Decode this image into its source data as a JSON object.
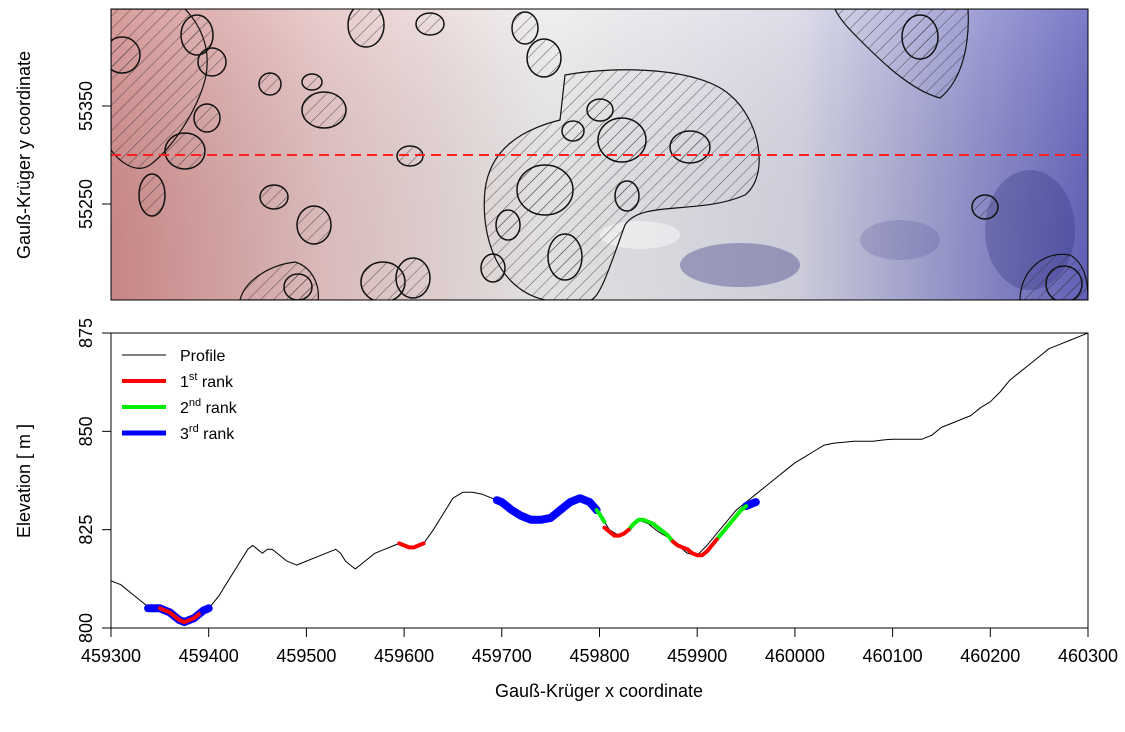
{
  "figure": {
    "map_panel": {
      "ylabel": "Gauß-Krüger y coordinate",
      "y_ticks": [
        "55350",
        "55250"
      ],
      "profile_line_color": "#ff2020",
      "relief_colors": {
        "west": "#d08a8a",
        "center": "#e8e8e8",
        "east": "#5a5ab8"
      },
      "hatched_features": "hatched polygons (sinkhole delineation) on shaded relief"
    },
    "profile_panel": {
      "xlabel": "Gauß-Krüger x coordinate",
      "ylabel": "Elevation [ m ]",
      "legend": [
        {
          "label": "Profile",
          "sup": "",
          "suffix": "",
          "color": "#000000"
        },
        {
          "label": "1",
          "sup": "st",
          "suffix": " rank",
          "color": "#ff0000"
        },
        {
          "label": "2",
          "sup": "nd",
          "suffix": " rank",
          "color": "#00ee00"
        },
        {
          "label": "3",
          "sup": "rd",
          "suffix": " rank",
          "color": "#0000ff"
        }
      ]
    }
  },
  "chart_data": [
    {
      "type": "line",
      "title": "",
      "xlabel": "Gauß-Krüger x coordinate",
      "ylabel": "Elevation [ m ]",
      "xlim": [
        459300,
        460300
      ],
      "ylim": [
        800,
        875
      ],
      "x_ticks": [
        459300,
        459400,
        459500,
        459600,
        459700,
        459800,
        459900,
        460000,
        460100,
        460200,
        460300
      ],
      "y_ticks": [
        800,
        825,
        850,
        875
      ],
      "legend_position": "top-left",
      "grid": false,
      "series": [
        {
          "name": "Profile",
          "color": "#000000",
          "x": [
            459300,
            459310,
            459320,
            459330,
            459340,
            459350,
            459360,
            459370,
            459380,
            459390,
            459400,
            459410,
            459420,
            459430,
            459440,
            459445,
            459450,
            459455,
            459460,
            459465,
            459470,
            459480,
            459490,
            459500,
            459510,
            459520,
            459530,
            459535,
            459540,
            459545,
            459550,
            459555,
            459560,
            459570,
            459580,
            459590,
            459595,
            459600,
            459610,
            459620,
            459630,
            459640,
            459650,
            459660,
            459670,
            459680,
            459690,
            459700,
            459710,
            459720,
            459730,
            459740,
            459750,
            459760,
            459770,
            459780,
            459790,
            459800,
            459810,
            459820,
            459830,
            459840,
            459850,
            459860,
            459870,
            459880,
            459890,
            459900,
            459910,
            459920,
            459930,
            459940,
            459950,
            459960,
            459970,
            459980,
            459990,
            460000,
            460010,
            460020,
            460030,
            460040,
            460050,
            460060,
            460070,
            460080,
            460090,
            460100,
            460110,
            460120,
            460130,
            460140,
            460150,
            460160,
            460170,
            460180,
            460190,
            460200,
            460210,
            460220,
            460230,
            460240,
            460250,
            460260,
            460270,
            460280,
            460290,
            460300
          ],
          "y": [
            812,
            811,
            809,
            807,
            805,
            805,
            804,
            802,
            802,
            804,
            805,
            808,
            812,
            816,
            820,
            821,
            820,
            819,
            820,
            820,
            819,
            817,
            816,
            817,
            818,
            819,
            820,
            819,
            817,
            816,
            815,
            816,
            817,
            819,
            820,
            821,
            821.5,
            821,
            820.5,
            821.5,
            825,
            829,
            833,
            834.5,
            834.5,
            834,
            833,
            832.5,
            830,
            828.5,
            827.5,
            827.5,
            828,
            830,
            832,
            833,
            832,
            829,
            825,
            823.5,
            825,
            827.5,
            826.5,
            824.5,
            823,
            821,
            819,
            818.5,
            821,
            824,
            827,
            830,
            832,
            834,
            836,
            838,
            840,
            842,
            843.5,
            845,
            846.5,
            847,
            847.2,
            847.5,
            847.5,
            847.5,
            847.8,
            848,
            848,
            848,
            848,
            849,
            851,
            852,
            853,
            854,
            856,
            857.5,
            860,
            863,
            865,
            867,
            869,
            871,
            872,
            873,
            874,
            875
          ]
        },
        {
          "name": "1st rank",
          "color": "#ff0000",
          "segments": [
            {
              "x": [
                459350,
                459355,
                459360,
                459365,
                459370,
                459375,
                459380,
                459385,
                459390
              ],
              "y": [
                805,
                804.5,
                804,
                803,
                802,
                801.5,
                802,
                802.5,
                803.5
              ]
            },
            {
              "x": [
                459595,
                459600,
                459605,
                459610,
                459615,
                459620
              ],
              "y": [
                821.5,
                821,
                820.5,
                820.5,
                821,
                821.5
              ]
            },
            {
              "x": [
                459805,
                459810,
                459815,
                459820,
                459825,
                459830
              ],
              "y": [
                825.5,
                824.5,
                823.5,
                823.5,
                824,
                825
              ]
            },
            {
              "x": [
                459875,
                459880,
                459885,
                459890,
                459895,
                459900,
                459905,
                459910,
                459915,
                459920
              ],
              "y": [
                822,
                821,
                820.5,
                820,
                819,
                818.5,
                818.5,
                819.5,
                821,
                822.5
              ]
            }
          ]
        },
        {
          "name": "2nd rank",
          "color": "#00ee00",
          "segments": [
            {
              "x": [
                459797,
                459800,
                459805
              ],
              "y": [
                830,
                829,
                827
              ]
            },
            {
              "x": [
                459830,
                459835,
                459840,
                459845,
                459850,
                459855,
                459860,
                459865,
                459870,
                459875
              ],
              "y": [
                825,
                826.5,
                827.5,
                827.5,
                827,
                826.5,
                825.5,
                824.5,
                823.5,
                822
              ]
            },
            {
              "x": [
                459920,
                459925,
                459930,
                459935,
                459940,
                459945,
                459950
              ],
              "y": [
                822.5,
                824,
                825.5,
                827,
                828.5,
                830,
                831
              ]
            }
          ]
        },
        {
          "name": "3rd rank",
          "color": "#0000ff",
          "segments": [
            {
              "x": [
                459338,
                459345,
                459350,
                459355,
                459360,
                459365,
                459370,
                459375,
                459380,
                459385,
                459390,
                459395,
                459400
              ],
              "y": [
                805,
                805,
                805,
                804.5,
                804,
                803,
                802,
                801.5,
                802,
                802.5,
                803.5,
                804.5,
                805
              ]
            },
            {
              "x": [
                459695,
                459700,
                459710,
                459720,
                459730,
                459740,
                459750,
                459760,
                459770,
                459780,
                459790,
                459797
              ],
              "y": [
                832.5,
                832,
                830,
                828.5,
                827.5,
                827.5,
                828,
                830,
                832,
                833,
                832,
                830
              ]
            },
            {
              "x": [
                459950,
                459955,
                459960
              ],
              "y": [
                831,
                831.5,
                832
              ]
            }
          ]
        }
      ]
    }
  ]
}
